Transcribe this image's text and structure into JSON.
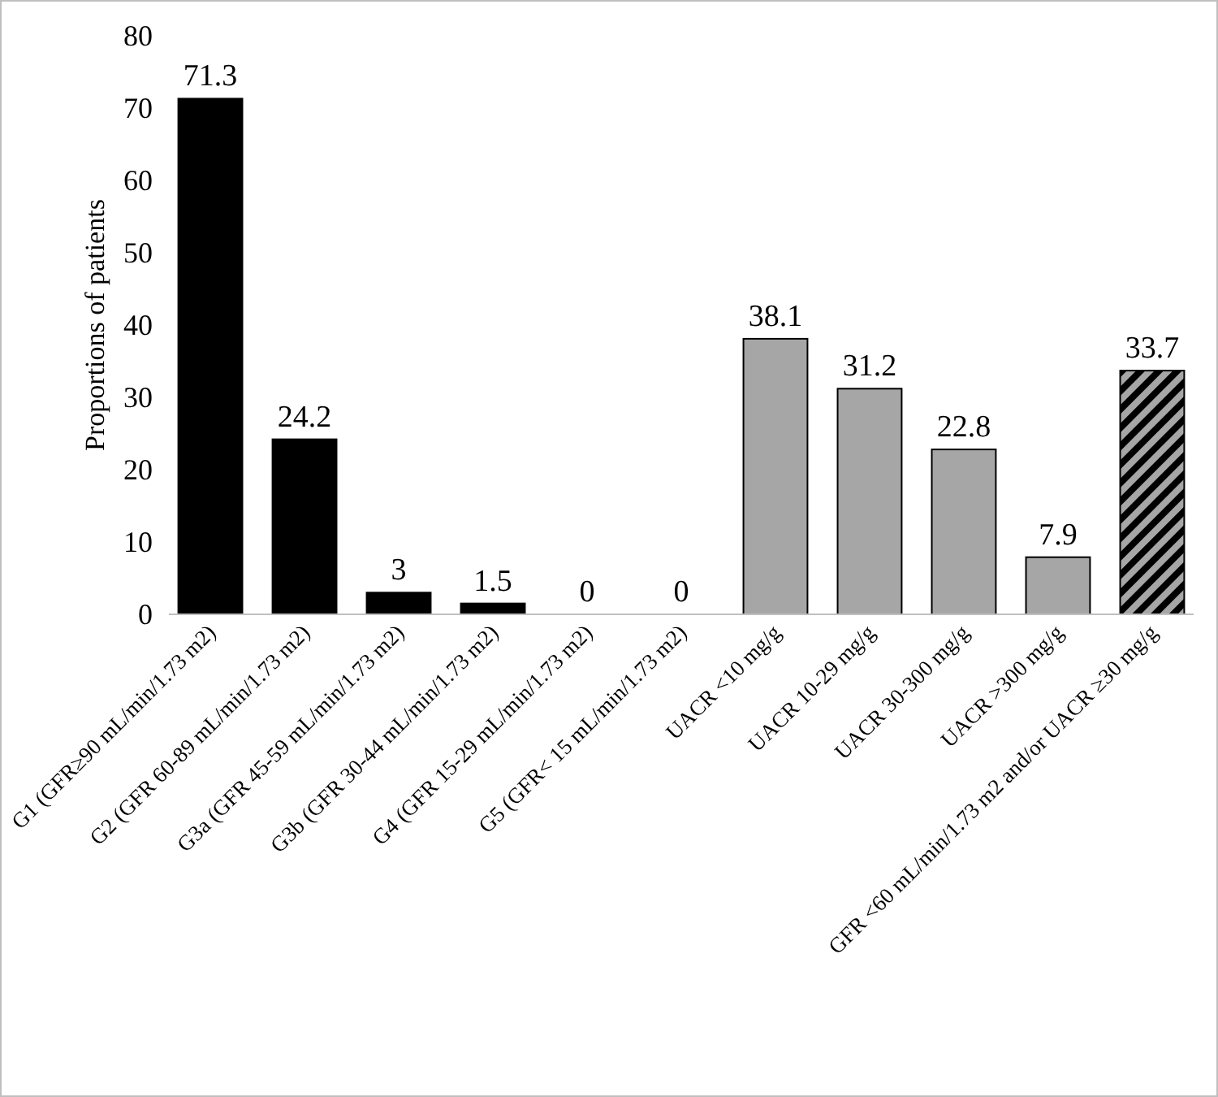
{
  "chart_data": {
    "type": "bar",
    "ylabel": "Proportions of patients",
    "categories": [
      "G1 (GFR≥90 mL/min/1.73 m2)",
      "G2 (GFR 60-89 mL/min/1.73 m2)",
      "G3a (GFR 45-59 mL/min/1.73 m2)",
      "G3b (GFR 30-44 mL/min/1.73 m2)",
      "G4 (GFR 15-29 mL/min/1.73 m2)",
      "G5 (GFR< 15 mL/min/1.73 m2)",
      "UACR <10 mg/g",
      "UACR 10-29 mg/g",
      "UACR 30-300 mg/g",
      "UACR >300 mg/g",
      "GFR <60 mL/min/1.73 m2 and/or UACR ≥30 mg/g"
    ],
    "values": [
      71.3,
      24.2,
      3,
      1.5,
      0,
      0,
      38.1,
      31.2,
      22.8,
      7.9,
      33.7
    ],
    "colors": [
      "#000000",
      "#000000",
      "#000000",
      "#000000",
      "#000000",
      "#000000",
      "#a6a6a6",
      "#a6a6a6",
      "#a6a6a6",
      "#a6a6a6",
      "#000000"
    ],
    "ylim": [
      0,
      80
    ],
    "yticks": [
      0,
      10,
      20,
      30,
      40,
      50,
      60,
      70,
      80
    ],
    "data_labels": true,
    "grid": false
  }
}
